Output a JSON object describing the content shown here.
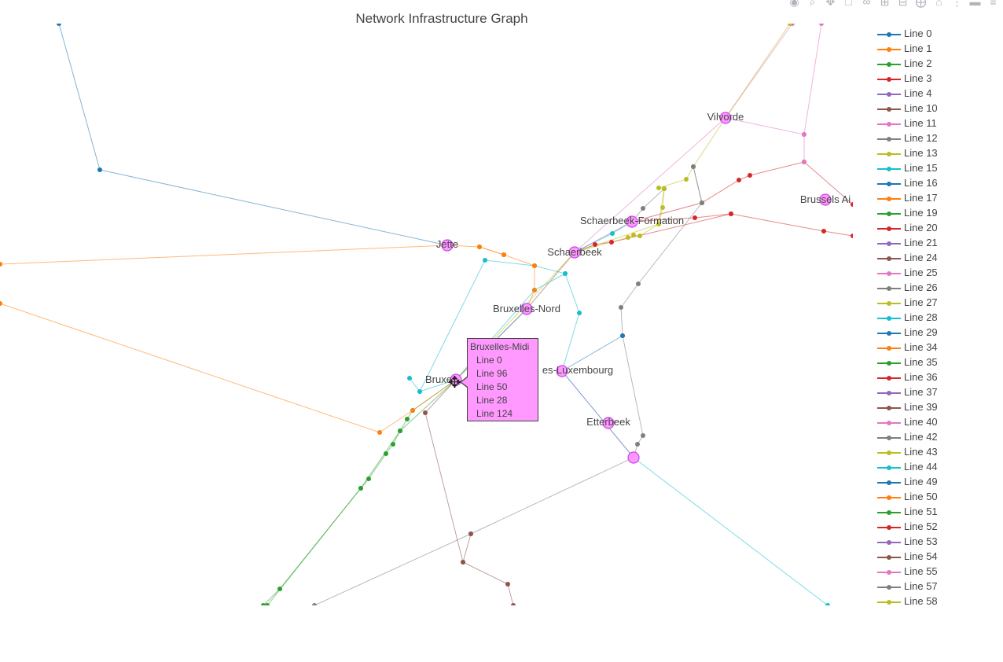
{
  "chart_data": {
    "type": "scatter",
    "title": "Network Infrastructure Graph",
    "xlabel": "",
    "ylabel": "",
    "xlim": [
      0,
      1085
    ],
    "ylim": [
      770,
      30
    ],
    "grid": false,
    "legend_position": "right",
    "stations": [
      {
        "name": "Vilvorde",
        "x": 923,
        "y": 150
      },
      {
        "name": "Brussels Ai",
        "x": 1050,
        "y": 254
      },
      {
        "name": "Schaerbeek-Formation",
        "x": 804,
        "y": 282
      },
      {
        "name": "Jette",
        "x": 569,
        "y": 312
      },
      {
        "name": "Schaerbeek",
        "x": 731,
        "y": 321
      },
      {
        "name": "Bruxelles-Nord",
        "x": 670,
        "y": 393
      },
      {
        "name": "es-Luxembourg",
        "x": 715,
        "y": 472
      },
      {
        "name": "Bruxelles-Midi",
        "x": 580,
        "y": 483
      },
      {
        "name": "Etterbeek",
        "x": 774,
        "y": 538
      },
      {
        "name": "",
        "x": 806,
        "y": 582
      }
    ],
    "station_labels": [
      {
        "text": "Vilvorde",
        "x": 923,
        "y": 149
      },
      {
        "text": "Brussels Ai",
        "x": 1050,
        "y": 254
      },
      {
        "text": "Schaerbeek-Formation",
        "x": 804,
        "y": 281
      },
      {
        "text": "Jette",
        "x": 569,
        "y": 311
      },
      {
        "text": "Schaerbeek",
        "x": 731,
        "y": 321
      },
      {
        "text": "Bruxelles-Nord",
        "x": 670,
        "y": 393
      },
      {
        "text": "es-Luxembourg",
        "x": 735,
        "y": 471
      },
      {
        "text": "Bruxe",
        "x": 558,
        "y": 483
      },
      {
        "text": "Etterbeek",
        "x": 774,
        "y": 537
      }
    ],
    "series": [
      {
        "name": "Line 0",
        "color": "#1f77b4",
        "points": [
          [
            75,
            30
          ],
          [
            127,
            216
          ],
          [
            569,
            312
          ]
        ]
      },
      {
        "name": "Line 1",
        "color": "#ff7f0e",
        "points": [
          [
            0,
            336
          ],
          [
            569,
            312
          ],
          [
            610,
            314
          ],
          [
            641,
            324
          ],
          [
            680,
            338
          ]
        ]
      },
      {
        "name": "Line 2",
        "color": "#2ca02c",
        "points": [
          [
            580,
            483
          ],
          [
            525,
            522
          ],
          [
            518,
            533
          ],
          [
            509,
            548
          ],
          [
            500,
            565
          ],
          [
            491,
            577
          ],
          [
            469,
            609
          ],
          [
            459,
            621
          ],
          [
            356,
            749
          ],
          [
            335,
            770
          ]
        ]
      },
      {
        "name": "Line 3",
        "color": "#d62728",
        "points": [
          [
            731,
            321
          ],
          [
            757,
            311
          ],
          [
            778,
            308
          ],
          [
            930,
            272
          ],
          [
            1048,
            294
          ],
          [
            1085,
            300
          ]
        ]
      },
      {
        "name": "Line 4",
        "color": "#9467bd",
        "points": [
          [
            731,
            321
          ],
          [
            804,
            282
          ]
        ]
      },
      {
        "name": "Line 10",
        "color": "#8c564b",
        "points": [
          [
            580,
            483
          ],
          [
            541,
            525
          ],
          [
            589,
            715
          ],
          [
            646,
            743
          ],
          [
            653,
            770
          ]
        ]
      },
      {
        "name": "Line 11",
        "color": "#e377c2",
        "points": [
          [
            731,
            321
          ],
          [
            923,
            150
          ],
          [
            1008,
            30
          ]
        ]
      },
      {
        "name": "Line 12",
        "color": "#7f7f7f",
        "points": [
          [
            882,
            212
          ],
          [
            893,
            258
          ],
          [
            812,
            361
          ],
          [
            790,
            391
          ],
          [
            792,
            427
          ],
          [
            818,
            554
          ],
          [
            811,
            565
          ],
          [
            806,
            582
          ],
          [
            599,
            679
          ],
          [
            400,
            770
          ]
        ]
      },
      {
        "name": "Line 13",
        "color": "#bcbd22",
        "points": [
          [
            731,
            321
          ],
          [
            799,
            302
          ],
          [
            806,
            299
          ],
          [
            814,
            300
          ],
          [
            838,
            285
          ],
          [
            843,
            264
          ],
          [
            845,
            240
          ],
          [
            838,
            239
          ],
          [
            873,
            228
          ],
          [
            882,
            212
          ],
          [
            923,
            150
          ],
          [
            1005,
            30
          ]
        ]
      },
      {
        "name": "Line 15",
        "color": "#17becf",
        "points": [
          [
            580,
            483
          ],
          [
            534,
            498
          ],
          [
            521,
            481
          ],
          [
            534,
            498
          ],
          [
            617,
            331
          ],
          [
            680,
            338
          ],
          [
            719,
            348
          ],
          [
            737,
            398
          ],
          [
            715,
            472
          ],
          [
            806,
            582
          ],
          [
            1053,
            770
          ]
        ]
      },
      {
        "name": "Line 16",
        "color": "#1f77b4",
        "points": [
          [
            580,
            483
          ],
          [
            670,
            393
          ]
        ]
      },
      {
        "name": "Line 17",
        "color": "#ff7f0e",
        "points": [
          [
            0,
            386
          ],
          [
            483,
            550
          ],
          [
            525,
            522
          ],
          [
            580,
            483
          ]
        ]
      },
      {
        "name": "Line 19",
        "color": "#2ca02c",
        "points": [
          [
            580,
            483
          ],
          [
            509,
            548
          ],
          [
            459,
            621
          ],
          [
            340,
            770
          ]
        ]
      },
      {
        "name": "Line 20",
        "color": "#d62728",
        "points": [
          [
            804,
            282
          ],
          [
            884,
            277
          ],
          [
            930,
            272
          ]
        ]
      },
      {
        "name": "Line 24",
        "color": "#8c564b",
        "points": [
          [
            670,
            393
          ],
          [
            731,
            321
          ]
        ]
      },
      {
        "name": "Line 25",
        "color": "#e377c2",
        "points": [
          [
            923,
            150
          ],
          [
            1023,
            171
          ],
          [
            1045,
            30
          ]
        ]
      },
      {
        "name": "Line 26",
        "color": "#7f7f7f",
        "points": [
          [
            804,
            282
          ],
          [
            818,
            265
          ],
          [
            845,
            240
          ]
        ]
      },
      {
        "name": "Line 27",
        "color": "#bcbd22",
        "points": [
          [
            731,
            321
          ],
          [
            838,
            285
          ],
          [
            845,
            240
          ]
        ]
      },
      {
        "name": "Line 28",
        "color": "#17becf",
        "points": [
          [
            580,
            483
          ],
          [
            680,
            369
          ],
          [
            719,
            348
          ]
        ]
      },
      {
        "name": "Line 29",
        "color": "#1f77b4",
        "points": [
          [
            715,
            472
          ],
          [
            792,
            427
          ]
        ]
      },
      {
        "name": "Line 34",
        "color": "#ff7f0e",
        "points": [
          [
            680,
            338
          ],
          [
            680,
            369
          ],
          [
            670,
            393
          ]
        ]
      },
      {
        "name": "Line 36",
        "color": "#d62728",
        "points": [
          [
            804,
            282
          ],
          [
            893,
            258
          ],
          [
            940,
            229
          ],
          [
            954,
            223
          ],
          [
            1023,
            206
          ],
          [
            1085,
            260
          ]
        ]
      },
      {
        "name": "Line 37",
        "color": "#9467bd",
        "points": [
          [
            715,
            472
          ],
          [
            806,
            582
          ]
        ]
      },
      {
        "name": "Line 39",
        "color": "#8c564b",
        "points": [
          [
            589,
            715
          ],
          [
            599,
            679
          ]
        ]
      },
      {
        "name": "Line 40",
        "color": "#e377c2",
        "points": [
          [
            1023,
            171
          ],
          [
            1023,
            206
          ]
        ]
      },
      {
        "name": "Line 42",
        "color": "#7f7f7f",
        "points": [
          [
            893,
            258
          ],
          [
            882,
            212
          ]
        ]
      },
      {
        "name": "Line 44",
        "color": "#17becf",
        "points": [
          [
            731,
            321
          ],
          [
            779,
            297
          ],
          [
            804,
            282
          ]
        ]
      },
      {
        "name": "Line 50",
        "color": "#ff7f0e",
        "points": [
          [
            610,
            314
          ],
          [
            641,
            324
          ]
        ]
      },
      {
        "name": "Line 96",
        "color": "#7f7f7f",
        "points": [
          [
            580,
            483
          ],
          [
            670,
            393
          ]
        ]
      },
      {
        "name": "Line 124",
        "color": "#bcbd22",
        "points": [
          [
            580,
            483
          ],
          [
            731,
            321
          ]
        ]
      }
    ],
    "legend": [
      "Line 0",
      "Line 1",
      "Line 2",
      "Line 3",
      "Line 4",
      "Line 10",
      "Line 11",
      "Line 12",
      "Line 13",
      "Line 15",
      "Line 16",
      "Line 17",
      "Line 19",
      "Line 20",
      "Line 21",
      "Line 24",
      "Line 25",
      "Line 26",
      "Line 27",
      "Line 28",
      "Line 29",
      "Line 34",
      "Line 35",
      "Line 36",
      "Line 37",
      "Line 39",
      "Line 40",
      "Line 42",
      "Line 43",
      "Line 44",
      "Line 49",
      "Line 50",
      "Line 51",
      "Line 52",
      "Line 53",
      "Line 54",
      "Line 55",
      "Line 57",
      "Line 58"
    ],
    "legend_colors": [
      "#1f77b4",
      "#ff7f0e",
      "#2ca02c",
      "#d62728",
      "#9467bd",
      "#8c564b",
      "#e377c2",
      "#7f7f7f",
      "#bcbd22",
      "#17becf"
    ],
    "station_color": "#ff99ff",
    "station_outline": "#cc44ee"
  },
  "tooltip": {
    "title": "Bruxelles-Midi",
    "lines": [
      "Line 0",
      "Line 96",
      "Line 50",
      "Line 28",
      "Line 124"
    ]
  },
  "modebar": [
    "camera-icon",
    "zoom-icon",
    "pan-icon",
    "box-select-icon",
    "lasso-icon",
    "zoom-in-icon",
    "zoom-out-icon",
    "autoscale-icon",
    "home-icon",
    "more-icon",
    "spike-icon",
    "compare-icon"
  ]
}
